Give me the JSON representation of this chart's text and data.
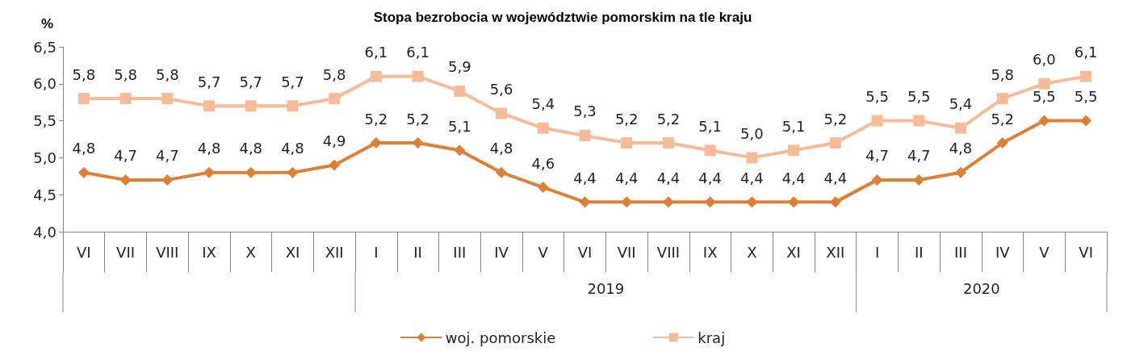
{
  "chart_data": {
    "type": "line",
    "title": "Stopa bezrobocia w województwie pomorskim na tle kraju",
    "ylabel": "%",
    "categories": [
      "VI",
      "VII",
      "VIII",
      "IX",
      "X",
      "XI",
      "XII",
      "I",
      "II",
      "III",
      "IV",
      "V",
      "VI",
      "VII",
      "VIII",
      "IX",
      "X",
      "XI",
      "XII",
      "I",
      "II",
      "III",
      "IV",
      "V",
      "VI"
    ],
    "series": [
      {
        "name": "woj. pomorskie",
        "color": "#df7f36",
        "marker": "diamond",
        "values": [
          4.8,
          4.7,
          4.7,
          4.8,
          4.8,
          4.8,
          4.9,
          5.2,
          5.2,
          5.1,
          4.8,
          4.6,
          4.4,
          4.4,
          4.4,
          4.4,
          4.4,
          4.4,
          4.4,
          4.7,
          4.7,
          4.8,
          5.2,
          5.5,
          5.5
        ],
        "value_labels": [
          "4,8",
          "4,7",
          "4,7",
          "4,8",
          "4,8",
          "4,8",
          "4,9",
          "5,2",
          "5,2",
          "5,1",
          "4,8",
          "4,6",
          "4,4",
          "4,4",
          "4,4",
          "4,4",
          "4,4",
          "4,4",
          "4,4",
          "4,7",
          "4,7",
          "4,8",
          "5,2",
          "5,5",
          "5,5"
        ]
      },
      {
        "name": "kraj",
        "color": "#f8bb98",
        "marker": "square",
        "values": [
          5.8,
          5.8,
          5.8,
          5.7,
          5.7,
          5.7,
          5.8,
          6.1,
          6.1,
          5.9,
          5.6,
          5.4,
          5.3,
          5.2,
          5.2,
          5.1,
          5.0,
          5.1,
          5.2,
          5.5,
          5.5,
          5.4,
          5.8,
          6.0,
          6.1
        ],
        "value_labels": [
          "5,8",
          "5,8",
          "5,8",
          "5,7",
          "5,7",
          "5,7",
          "5,8",
          "6,1",
          "6,1",
          "5,9",
          "5,6",
          "5,4",
          "5,3",
          "5,2",
          "5,2",
          "5,1",
          "5,0",
          "5,1",
          "5,2",
          "5,5",
          "5,5",
          "5,4",
          "5,8",
          "6,0",
          "6,1"
        ]
      }
    ],
    "ylim": [
      4,
      6.5
    ],
    "yticks": [
      {
        "value": 4,
        "label": "4,0"
      },
      {
        "value": 4.5,
        "label": "4,5"
      },
      {
        "value": 5,
        "label": "5,0"
      },
      {
        "value": 5.5,
        "label": "5,5"
      },
      {
        "value": 6,
        "label": "6,0"
      },
      {
        "value": 6.5,
        "label": "6,5"
      }
    ],
    "grid": false,
    "legend": "bottom",
    "line_style": "solid",
    "annotations": [
      "2019",
      "2020"
    ]
  }
}
